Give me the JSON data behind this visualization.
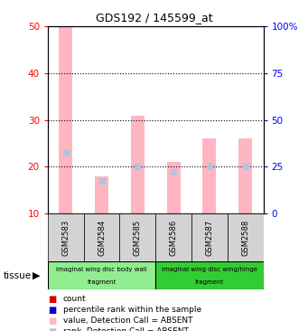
{
  "title": "GDS192 / 145599_at",
  "samples": [
    "GSM2583",
    "GSM2584",
    "GSM2585",
    "GSM2586",
    "GSM2587",
    "GSM2588"
  ],
  "ylim_left": [
    10,
    50
  ],
  "ylim_right": [
    0,
    100
  ],
  "yticks_left": [
    10,
    20,
    30,
    40,
    50
  ],
  "yticks_right": [
    0,
    25,
    50,
    75,
    100
  ],
  "yticklabels_right": [
    "0",
    "25",
    "50",
    "75",
    "100%"
  ],
  "absent_bar_bottom": 10,
  "absent_bar_values": [
    50,
    18,
    31,
    21,
    26,
    26
  ],
  "absent_rank_values": [
    23,
    17,
    20,
    19,
    20,
    20
  ],
  "bar_bg_color": "#d3d3d3",
  "absent_bar_color": "#ffb6c1",
  "absent_rank_color": "#b0c4de",
  "count_color": "#ff0000",
  "rank_color": "#0000cc",
  "tissue_color_1": "#90ee90",
  "tissue_color_2": "#32cd32",
  "legend_items": [
    {
      "color": "#dd0000",
      "label": "count"
    },
    {
      "color": "#0000cc",
      "label": "percentile rank within the sample"
    },
    {
      "color": "#ffb6c1",
      "label": "value, Detection Call = ABSENT"
    },
    {
      "color": "#b0c4de",
      "label": "rank, Detection Call = ABSENT"
    }
  ]
}
